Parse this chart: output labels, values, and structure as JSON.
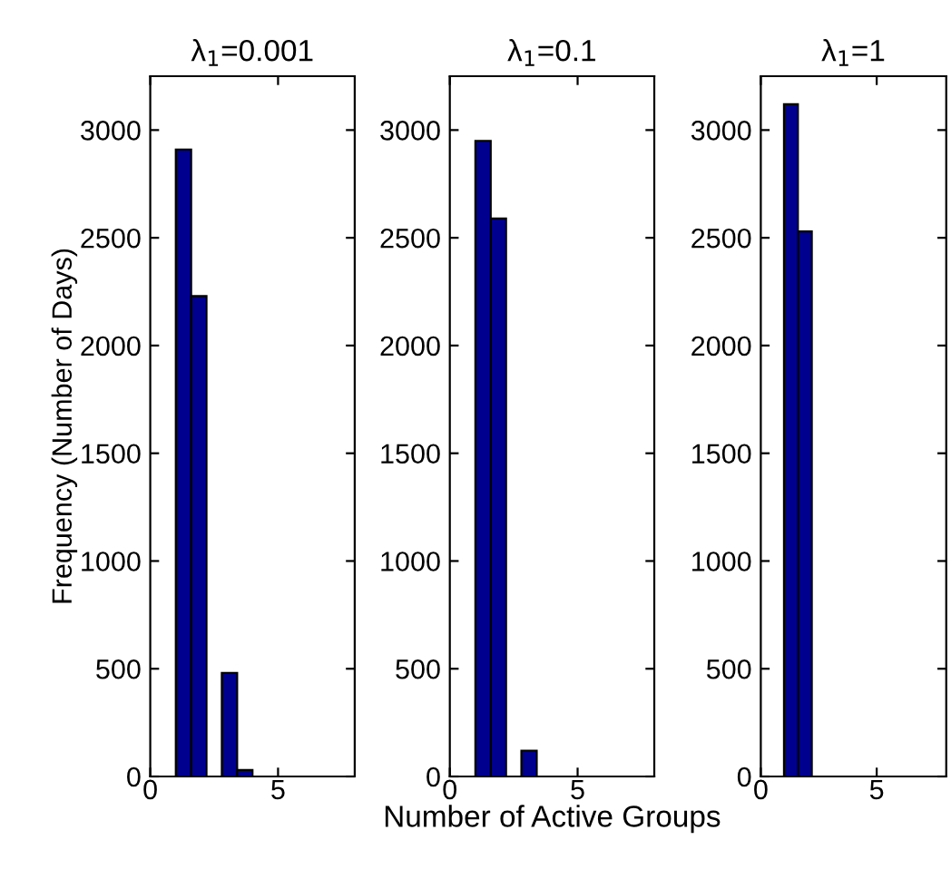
{
  "chart_data": [
    {
      "type": "histogram",
      "title": "λ$_{1}$=0.001",
      "ylabel": "Frequency (Number of Days)",
      "bins": [
        1,
        1.6,
        2.2,
        2.8,
        3.4,
        4,
        4.6,
        5.2,
        5.8,
        6.4,
        7
      ],
      "values": [
        2910,
        2230,
        0,
        480,
        30,
        0,
        0,
        0,
        0,
        0
      ],
      "color": "#00008f",
      "xlim": [
        0,
        8
      ],
      "xticks": [
        0,
        5
      ],
      "ylim": [
        0,
        3250
      ],
      "yticks": [
        0,
        500,
        1000,
        1500,
        2000,
        2500,
        3000
      ]
    },
    {
      "type": "histogram",
      "title": "λ$_{1}$=0.1",
      "xlabel": "Number of Active Groups",
      "bins": [
        1,
        1.6,
        2.2,
        2.8,
        3.4,
        4,
        4.6,
        5.2,
        5.8,
        6.4,
        7
      ],
      "values": [
        2950,
        2590,
        0,
        120,
        0,
        0,
        0,
        0,
        0,
        0
      ],
      "color": "#00008f",
      "xlim": [
        0,
        8
      ],
      "xticks": [
        0,
        5
      ],
      "ylim": [
        0,
        3250
      ],
      "yticks": [
        0,
        500,
        1000,
        1500,
        2000,
        2500,
        3000
      ]
    },
    {
      "type": "histogram",
      "title": "λ$_{1}$=1",
      "bins": [
        1,
        1.6,
        2.2,
        2.8,
        3.4,
        4,
        4.6,
        5.2,
        5.8,
        6.4,
        7
      ],
      "values": [
        3120,
        2530,
        0,
        0,
        0,
        0,
        0,
        0,
        0,
        0
      ],
      "color": "#00008f",
      "xlim": [
        0,
        8
      ],
      "xticks": [
        0,
        5
      ],
      "ylim": [
        0,
        3250
      ],
      "yticks": [
        0,
        500,
        1000,
        1500,
        2000,
        2500,
        3000
      ]
    }
  ]
}
